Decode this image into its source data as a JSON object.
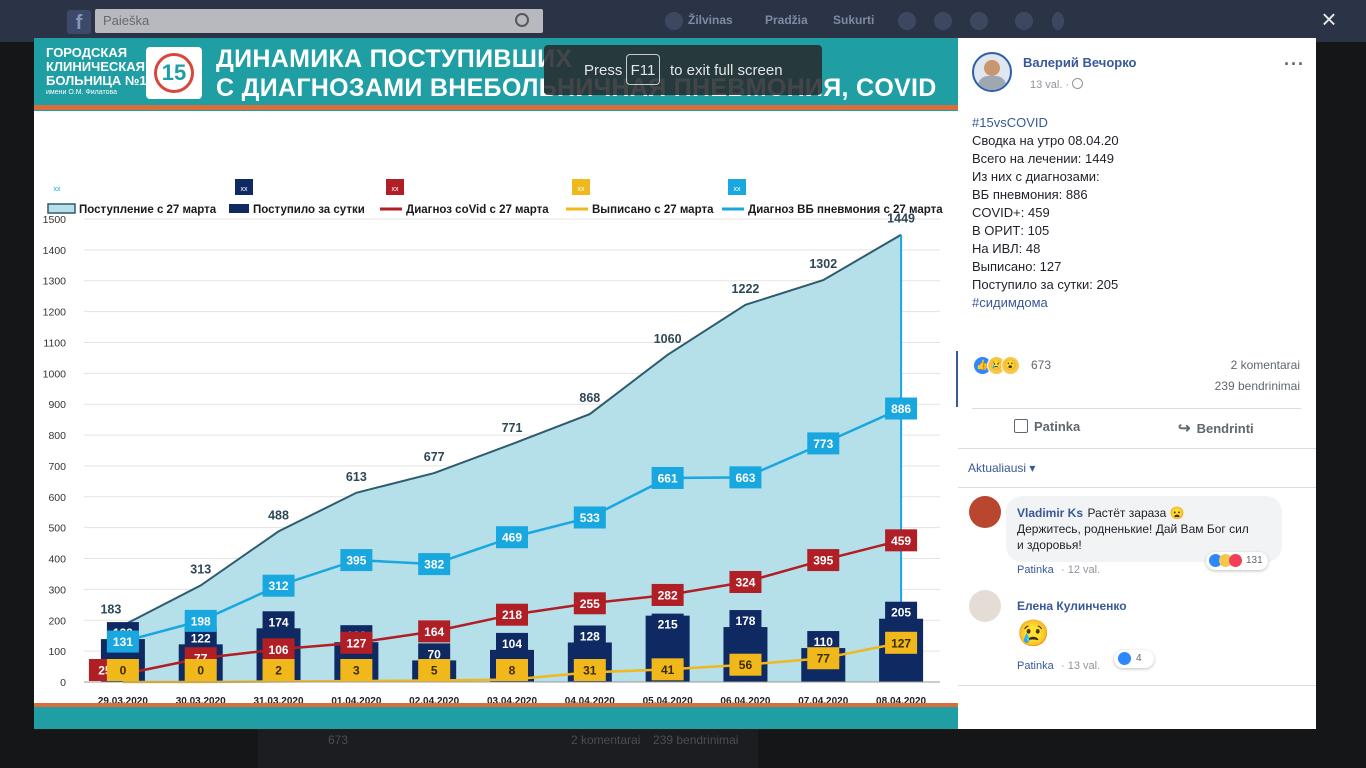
{
  "fb": {
    "logo": "f",
    "search_placeholder": "Paieška",
    "nav_profile": "Žilvinas",
    "nav_home": "Pradžia",
    "nav_create": "Sukurti"
  },
  "bg_post": {
    "reactions": "673",
    "comments": "2 komentarai",
    "shares": "239 bendrinimai"
  },
  "close_icon": "×",
  "f11": {
    "press": "Press",
    "key": "F11",
    "rest": "to exit full screen"
  },
  "banner": {
    "hospital_lines": [
      "ГОРОДСКАЯ",
      "КЛИНИЧЕСКАЯ",
      "БОЛЬНИЦА №15"
    ],
    "hospital_sub": "имени О.М. Филатова",
    "logo_number": "15",
    "title_line1": "ДИНАМИКА ПОСТУПИВШИХ",
    "title_line2": "С ДИАГНОЗАМИ ВНЕБОЛЬНИЧНАЯ ПНЕВМОНИЯ, COVID"
  },
  "chart_data": {
    "type": "bar",
    "x": [
      "29.03.2020",
      "30.03.2020",
      "31.03.2020",
      "01.04.2020",
      "02.04.2020",
      "03.04.2020",
      "04.04.2020",
      "05.04.2020",
      "06.04.2020",
      "07.04.2020",
      "08.04.2020"
    ],
    "ylim": [
      0,
      1500
    ],
    "yticks": [
      0,
      100,
      200,
      300,
      400,
      500,
      600,
      700,
      800,
      900,
      1000,
      1100,
      1200,
      1300,
      1400,
      1500
    ],
    "legend_position": "top",
    "grid": true,
    "series": [
      {
        "name": "Поступление с 27 марта",
        "kind": "area",
        "color": "#b5dfe9",
        "line_color": "#2e5b6f",
        "values": [
          183,
          313,
          488,
          613,
          677,
          771,
          868,
          1060,
          1222,
          1302,
          1449
        ]
      },
      {
        "name": "Поступило за сутки",
        "kind": "bar",
        "color": "#0f2a63",
        "values": [
          139,
          122,
          174,
          129,
          70,
          104,
          128,
          215,
          178,
          110,
          205
        ]
      },
      {
        "name": "Диагноз coVid с 27 марта",
        "kind": "line",
        "color": "#b01e26",
        "values": [
          25,
          77,
          106,
          127,
          164,
          218,
          255,
          282,
          324,
          395,
          459
        ]
      },
      {
        "name": "Выписано с 27 марта",
        "kind": "line",
        "color": "#f1b81c",
        "values": [
          0,
          0,
          2,
          3,
          5,
          8,
          31,
          41,
          56,
          77,
          127
        ]
      },
      {
        "name": "Диагноз ВБ пневмония с 27 марта",
        "kind": "line",
        "color": "#19a7e0",
        "values": [
          131,
          198,
          312,
          395,
          382,
          469,
          533,
          661,
          663,
          773,
          886
        ]
      }
    ],
    "legend_marker": "xx"
  },
  "post": {
    "author": "Валерий Вечорко",
    "time": "13 val. ·",
    "more": "···",
    "lines": [
      {
        "text": "#15vsCOVID",
        "link": true
      },
      {
        "text": "Сводка на утро 08.04.20",
        "link": false
      },
      {
        "text": "Всего на лечении: 1449",
        "link": false
      },
      {
        "text": "Из них с диагнозами:",
        "link": false
      },
      {
        "text": "ВБ пневмония: 886",
        "link": false
      },
      {
        "text": "COVID+: 459",
        "link": false
      },
      {
        "text": "В ОРИТ: 105",
        "link": false
      },
      {
        "text": "На ИВЛ: 48",
        "link": false
      },
      {
        "text": "Выписано: 127",
        "link": false
      },
      {
        "text": "Поступило за сутки: 205",
        "link": false
      },
      {
        "text": "#сидимдома",
        "link": true
      }
    ],
    "reactions_count": "673",
    "comments_count": "2 komentarai",
    "shares_count": "239 bendrinimai",
    "like_label": "Patinka",
    "share_label": "Bendrinti",
    "sort_label": "Aktualiausi ▾"
  },
  "comments": [
    {
      "author": "Vladimir Ks",
      "text1": "Растёт зараза 😦",
      "text2": "Держитесь, родненькие! Дай Вам Бог сил",
      "text3": "и здоровья!",
      "like": "Patinka",
      "time": "· 12 val.",
      "reactions": "131"
    },
    {
      "author": "Елена Кулинченко",
      "text1": "😢",
      "like": "Patinka",
      "time": "· 13 val.",
      "reactions": "4"
    }
  ],
  "colors": {
    "facebook_blue": "#385898",
    "banner_teal": "#1f9ea3",
    "banner_orange": "#d96d3b"
  }
}
